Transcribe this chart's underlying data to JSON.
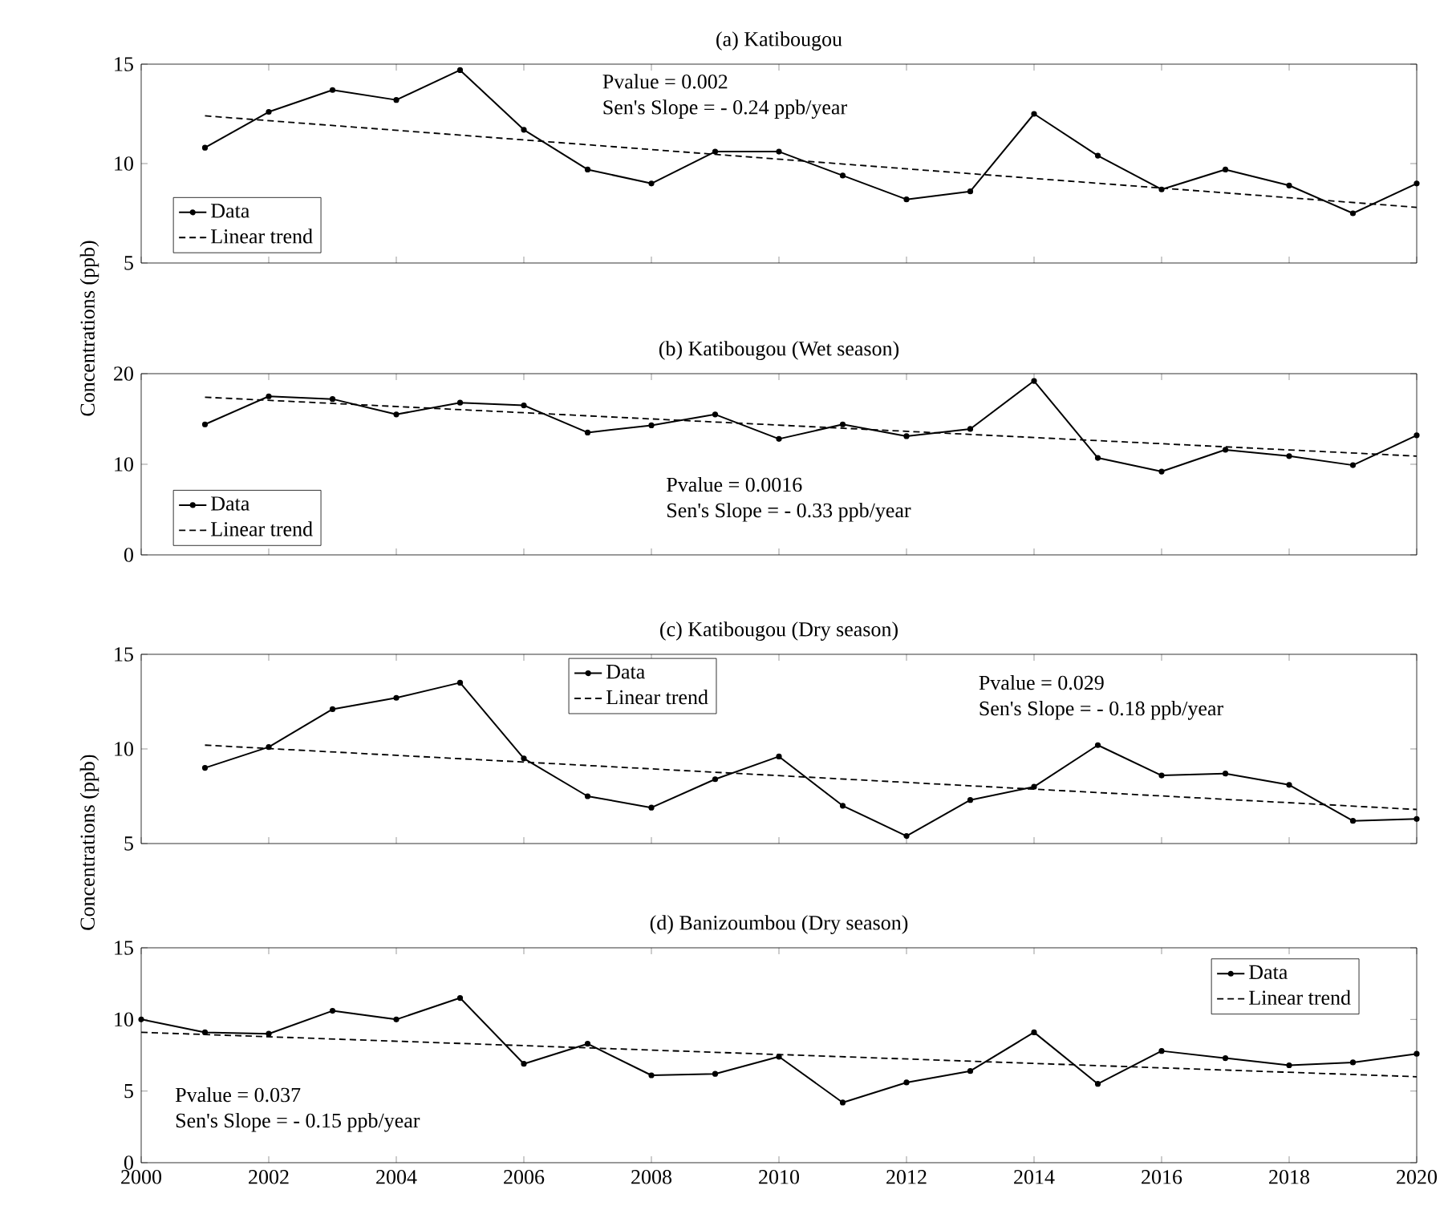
{
  "chart_data": [
    {
      "type": "line",
      "title": "(a) Katibougou",
      "xlim": [
        2000,
        2020
      ],
      "xticks": [
        2000,
        2002,
        2004,
        2006,
        2008,
        2010,
        2012,
        2014,
        2016,
        2018,
        2020
      ],
      "ylim": [
        5,
        15
      ],
      "yticks": [
        5,
        10,
        15
      ],
      "tick_labels": "y",
      "legend": "bottom left",
      "annotations": [
        "Pvalue = 0.002",
        "Sen's Slope = - 0.24 ppb/year"
      ],
      "series": [
        {
          "name": "Data",
          "color": "#000000",
          "marker": "circle",
          "line_style": "solid",
          "x": [
            2001,
            2002,
            2003,
            2004,
            2005,
            2006,
            2007,
            2008,
            2009,
            2010,
            2011,
            2012,
            2013,
            2014,
            2015,
            2016,
            2017,
            2018,
            2019,
            2020
          ],
          "values": [
            10.8,
            12.6,
            13.7,
            13.2,
            14.7,
            11.7,
            9.7,
            9.0,
            10.6,
            10.6,
            9.4,
            8.2,
            8.6,
            12.5,
            10.4,
            8.7,
            9.7,
            8.9,
            7.5,
            9.0
          ]
        },
        {
          "name": "Linear trend",
          "color": "#000000",
          "marker": "none",
          "line_style": "dashed",
          "x": [
            2001,
            2020
          ],
          "values": [
            12.4,
            7.8
          ]
        }
      ]
    },
    {
      "type": "line",
      "title": "(b) Katibougou (Wet season)",
      "ylabel": "Concentrations (ppb)",
      "xlim": [
        2000,
        2020
      ],
      "xticks": [
        2000,
        2002,
        2004,
        2006,
        2008,
        2010,
        2012,
        2014,
        2016,
        2018,
        2020
      ],
      "ylim": [
        0,
        20
      ],
      "yticks": [
        0,
        10,
        20
      ],
      "tick_labels": "y",
      "legend": "bottom left",
      "annotations": [
        "Pvalue = 0.0016",
        "Sen's Slope = - 0.33 ppb/year"
      ],
      "series": [
        {
          "name": "Data",
          "color": "#000000",
          "marker": "circle",
          "line_style": "solid",
          "x": [
            2001,
            2002,
            2003,
            2004,
            2005,
            2006,
            2007,
            2008,
            2009,
            2010,
            2011,
            2012,
            2013,
            2014,
            2015,
            2016,
            2017,
            2018,
            2019,
            2020
          ],
          "values": [
            14.4,
            17.5,
            17.2,
            15.5,
            16.8,
            16.5,
            13.5,
            14.3,
            15.5,
            12.8,
            14.4,
            13.1,
            13.9,
            19.2,
            10.7,
            9.2,
            11.6,
            10.9,
            9.9,
            13.2
          ]
        },
        {
          "name": "Linear trend",
          "color": "#000000",
          "marker": "none",
          "line_style": "dashed",
          "x": [
            2001,
            2020
          ],
          "values": [
            17.4,
            10.9
          ]
        }
      ]
    },
    {
      "type": "line",
      "title": "(c) Katibougou (Dry season)",
      "xlim": [
        2000,
        2020
      ],
      "xticks": [
        2000,
        2002,
        2004,
        2006,
        2008,
        2010,
        2012,
        2014,
        2016,
        2018,
        2020
      ],
      "ylim": [
        5,
        15
      ],
      "yticks": [
        5,
        10,
        15
      ],
      "tick_labels": "y",
      "legend": "top",
      "annotations": [
        "Pvalue = 0.029",
        "Sen's Slope = - 0.18 ppb/year"
      ],
      "series": [
        {
          "name": "Data",
          "color": "#000000",
          "marker": "circle",
          "line_style": "solid",
          "x": [
            2001,
            2002,
            2003,
            2004,
            2005,
            2006,
            2007,
            2008,
            2009,
            2010,
            2011,
            2012,
            2013,
            2014,
            2015,
            2016,
            2017,
            2018,
            2019,
            2020
          ],
          "values": [
            9.0,
            10.1,
            12.1,
            12.7,
            13.5,
            9.5,
            7.5,
            6.9,
            8.4,
            9.6,
            7.0,
            5.4,
            7.3,
            8.0,
            10.2,
            8.6,
            8.7,
            8.1,
            6.2,
            6.3
          ]
        },
        {
          "name": "Linear trend",
          "color": "#000000",
          "marker": "none",
          "line_style": "dashed",
          "x": [
            2001,
            2020
          ],
          "values": [
            10.2,
            6.8
          ]
        }
      ]
    },
    {
      "type": "line",
      "title": "(d) Banizoumbou (Dry season)",
      "ylabel": "Concentrations (ppb)",
      "xlim": [
        2000,
        2020
      ],
      "xticks": [
        2000,
        2002,
        2004,
        2006,
        2008,
        2010,
        2012,
        2014,
        2016,
        2018,
        2020
      ],
      "ylim": [
        0,
        15
      ],
      "yticks": [
        0,
        5,
        10,
        15
      ],
      "legend": "top right",
      "annotations": [
        "Pvalue = 0.037",
        "Sen's Slope = - 0.15 ppb/year"
      ],
      "series": [
        {
          "name": "Data",
          "color": "#000000",
          "marker": "circle",
          "line_style": "solid",
          "x": [
            2000,
            2001,
            2002,
            2003,
            2004,
            2005,
            2006,
            2007,
            2008,
            2009,
            2010,
            2011,
            2012,
            2013,
            2014,
            2015,
            2016,
            2017,
            2018,
            2019,
            2020
          ],
          "values": [
            10.0,
            9.1,
            9.0,
            10.6,
            10.0,
            11.5,
            6.9,
            8.3,
            6.1,
            6.2,
            7.4,
            4.2,
            5.6,
            6.4,
            9.1,
            5.5,
            7.8,
            7.3,
            6.8,
            7.0,
            7.6
          ]
        },
        {
          "name": "Linear trend",
          "color": "#000000",
          "marker": "none",
          "line_style": "dashed",
          "x": [
            2000,
            2020
          ],
          "values": [
            9.1,
            6.0
          ]
        }
      ]
    }
  ]
}
